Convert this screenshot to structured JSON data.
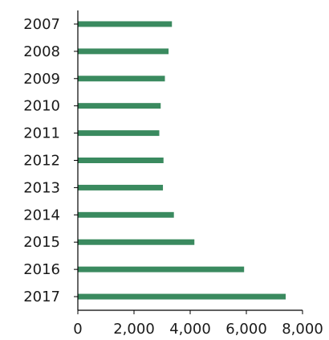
{
  "chart_data": {
    "type": "bar",
    "orientation": "horizontal",
    "categories": [
      "2007",
      "2008",
      "2009",
      "2010",
      "2011",
      "2012",
      "2013",
      "2014",
      "2015",
      "2016",
      "2017"
    ],
    "values": [
      3350,
      3230,
      3100,
      2950,
      2900,
      3050,
      3030,
      3420,
      4150,
      5920,
      7400
    ],
    "title": "",
    "xlabel": "",
    "ylabel": "",
    "xlim": [
      0,
      8000
    ],
    "xticks": [
      0,
      2000,
      4000,
      6000,
      8000
    ],
    "xtick_labels": [
      "0",
      "2,000",
      "4,000",
      "6,000",
      "8,000"
    ],
    "grid": false,
    "legend": "none",
    "bar_color": "#3a8a5f",
    "axis_color": "#000000"
  }
}
